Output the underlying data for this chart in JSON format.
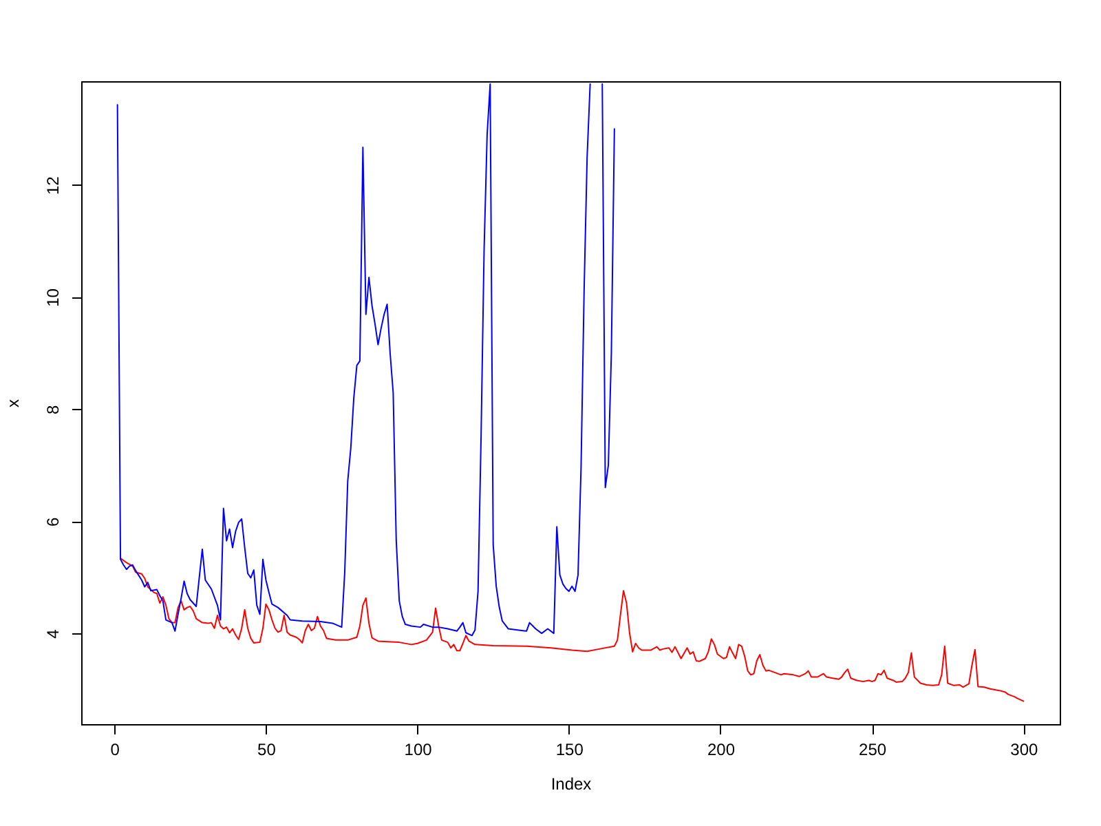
{
  "chart_data": {
    "type": "line",
    "xlabel": "Index",
    "ylabel": "x",
    "xlim": [
      -10.96,
      311.96
    ],
    "xticks": [
      0,
      50,
      100,
      150,
      200,
      250,
      300
    ],
    "ylim": [
      2.38,
      13.85
    ],
    "yticks": [
      4,
      6,
      8,
      10,
      12
    ],
    "series": [
      {
        "color": "#ff0000",
        "x": [
          2,
          4,
          6,
          7,
          9,
          10,
          11,
          13,
          14,
          15,
          16,
          17,
          18,
          19,
          20,
          21,
          22,
          23,
          24,
          25,
          26,
          27,
          29,
          31,
          32,
          33,
          34,
          35,
          36,
          37,
          38,
          39,
          40,
          41,
          42,
          43,
          44,
          45,
          46,
          48,
          49,
          50,
          51,
          52,
          53,
          54,
          55,
          56,
          57,
          58,
          60,
          61,
          62,
          63,
          64,
          65,
          66,
          67,
          68,
          69,
          70,
          73,
          77,
          80,
          81,
          82,
          83,
          84,
          85,
          87,
          90,
          94,
          98,
          100,
          103,
          104,
          105,
          106,
          107,
          108,
          110,
          111,
          112,
          113,
          114,
          115,
          116,
          117,
          119,
          125,
          136,
          144,
          151,
          156,
          160,
          165,
          166,
          167,
          168,
          169,
          170,
          171,
          172,
          173,
          174,
          177,
          179,
          180,
          181,
          183,
          184,
          185,
          187,
          189,
          190,
          191,
          192,
          193,
          195,
          196,
          197,
          198,
          199,
          201,
          202,
          203,
          204,
          205,
          206,
          207,
          208,
          209,
          210,
          211,
          212,
          213,
          214,
          215,
          216,
          218,
          220,
          221,
          224,
          226,
          228,
          229,
          230,
          232,
          234,
          235,
          237,
          239,
          240,
          241,
          242,
          243,
          245,
          247,
          249,
          250,
          251,
          252,
          253,
          254,
          255,
          257,
          258,
          260,
          261,
          262,
          263,
          264,
          266,
          268,
          270,
          272,
          273,
          274,
          275,
          277,
          279,
          280,
          282,
          283,
          284,
          285,
          287,
          289,
          292,
          294,
          295,
          297,
          298,
          300
        ],
        "values": [
          5.34,
          5.26,
          5.2,
          5.09,
          5.06,
          4.98,
          4.83,
          4.73,
          4.71,
          4.54,
          4.65,
          4.5,
          4.26,
          4.19,
          4.19,
          4.46,
          4.58,
          4.42,
          4.46,
          4.48,
          4.4,
          4.26,
          4.19,
          4.18,
          4.19,
          4.09,
          4.32,
          4.13,
          4.08,
          4.11,
          4.01,
          4.08,
          3.97,
          3.89,
          4.09,
          4.42,
          4.09,
          3.91,
          3.83,
          3.84,
          4.09,
          4.52,
          4.42,
          4.24,
          4.09,
          4.02,
          4.05,
          4.32,
          4.02,
          3.97,
          3.93,
          3.89,
          3.83,
          4.05,
          4.16,
          4.05,
          4.09,
          4.3,
          4.13,
          4.05,
          3.91,
          3.88,
          3.88,
          3.93,
          4.13,
          4.5,
          4.63,
          4.18,
          3.92,
          3.86,
          3.85,
          3.84,
          3.8,
          3.82,
          3.88,
          3.95,
          4.02,
          4.45,
          4.13,
          3.88,
          3.84,
          3.74,
          3.8,
          3.69,
          3.69,
          3.82,
          3.96,
          3.86,
          3.8,
          3.78,
          3.77,
          3.74,
          3.7,
          3.68,
          3.72,
          3.77,
          3.88,
          4.33,
          4.76,
          4.54,
          4.01,
          3.67,
          3.82,
          3.74,
          3.7,
          3.7,
          3.76,
          3.7,
          3.72,
          3.74,
          3.66,
          3.76,
          3.55,
          3.74,
          3.63,
          3.67,
          3.51,
          3.5,
          3.55,
          3.67,
          3.9,
          3.8,
          3.63,
          3.55,
          3.57,
          3.76,
          3.65,
          3.55,
          3.8,
          3.77,
          3.59,
          3.33,
          3.26,
          3.28,
          3.51,
          3.62,
          3.43,
          3.33,
          3.34,
          3.3,
          3.26,
          3.28,
          3.26,
          3.23,
          3.28,
          3.33,
          3.22,
          3.22,
          3.28,
          3.22,
          3.2,
          3.18,
          3.22,
          3.3,
          3.36,
          3.2,
          3.16,
          3.14,
          3.16,
          3.14,
          3.16,
          3.28,
          3.26,
          3.34,
          3.2,
          3.16,
          3.13,
          3.14,
          3.2,
          3.3,
          3.65,
          3.22,
          3.11,
          3.08,
          3.07,
          3.08,
          3.26,
          3.77,
          3.11,
          3.07,
          3.08,
          3.04,
          3.1,
          3.43,
          3.71,
          3.05,
          3.04,
          3.01,
          2.98,
          2.95,
          2.91,
          2.87,
          2.84,
          2.79
        ]
      },
      {
        "color": "#0000ff",
        "x": [
          1,
          2,
          3,
          4,
          5,
          6,
          7,
          9,
          10,
          11,
          12,
          14,
          15,
          16,
          17,
          19,
          20,
          21,
          22,
          23,
          24,
          25,
          27,
          28,
          29,
          30,
          32,
          34,
          35,
          36,
          37,
          38,
          39,
          40,
          41,
          42,
          43,
          44,
          45,
          46,
          47,
          48,
          49,
          50,
          51,
          52,
          54,
          57,
          58,
          62,
          68,
          72,
          75,
          76,
          77,
          78,
          79,
          80,
          81,
          82,
          83,
          84,
          85,
          86,
          87,
          88,
          89,
          90,
          91,
          92,
          93,
          94,
          95,
          96,
          98,
          101,
          102,
          105,
          107,
          110,
          113,
          114,
          115,
          116,
          118,
          119,
          120,
          121,
          122,
          123,
          124,
          125,
          126,
          127,
          128,
          130,
          133,
          136,
          137,
          139,
          141,
          143,
          145,
          146,
          147,
          148,
          149,
          150,
          151,
          152,
          153,
          154,
          155,
          156,
          157,
          158,
          159,
          160,
          161,
          162,
          163,
          164,
          165
        ],
        "values": [
          13.43,
          5.32,
          5.22,
          5.14,
          5.2,
          5.22,
          5.12,
          4.95,
          4.83,
          4.91,
          4.76,
          4.78,
          4.67,
          4.58,
          4.24,
          4.19,
          4.04,
          4.34,
          4.62,
          4.93,
          4.71,
          4.6,
          4.48,
          4.99,
          5.5,
          4.95,
          4.79,
          4.5,
          4.24,
          6.23,
          5.65,
          5.86,
          5.53,
          5.82,
          5.98,
          6.04,
          5.53,
          5.07,
          4.99,
          5.13,
          4.5,
          4.34,
          5.32,
          4.95,
          4.73,
          4.52,
          4.46,
          4.32,
          4.24,
          4.22,
          4.21,
          4.18,
          4.11,
          5.08,
          6.72,
          7.3,
          8.2,
          8.78,
          8.86,
          12.67,
          9.69,
          10.35,
          9.85,
          9.52,
          9.15,
          9.44,
          9.69,
          9.87,
          8.99,
          8.29,
          5.66,
          4.58,
          4.3,
          4.16,
          4.13,
          4.11,
          4.16,
          4.11,
          4.11,
          4.08,
          4.04,
          4.11,
          4.19,
          4.01,
          3.96,
          4.06,
          4.75,
          7.5,
          10.84,
          12.9,
          13.8,
          5.58,
          4.84,
          4.47,
          4.22,
          4.08,
          4.06,
          4.04,
          4.19,
          4.08,
          4.0,
          4.08,
          4.0,
          5.9,
          5.04,
          4.88,
          4.8,
          4.75,
          4.84,
          4.75,
          5.04,
          6.96,
          10.1,
          12.5,
          13.8,
          null,
          null,
          null,
          13.8,
          6.6,
          7.0,
          9.0,
          13.0
        ]
      }
    ]
  }
}
